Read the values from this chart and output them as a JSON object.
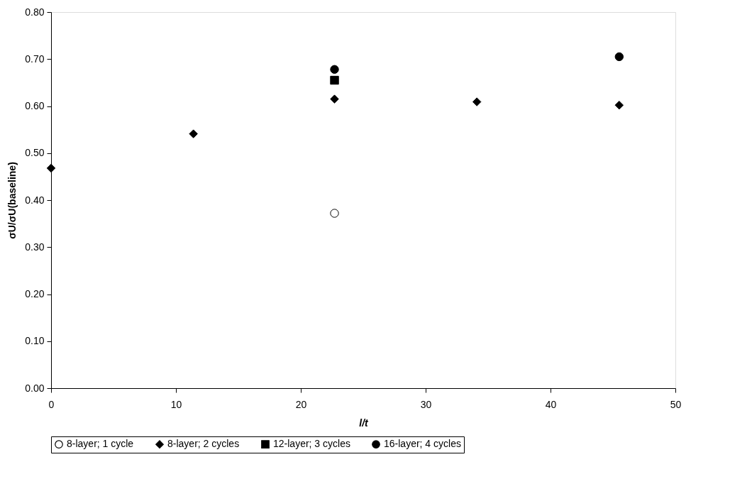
{
  "chart_data": {
    "type": "scatter",
    "xlabel": "l/t",
    "ylabel": "σU/σU(baseline)",
    "xlim": [
      0,
      50
    ],
    "xticks": [
      0,
      10,
      20,
      30,
      40,
      50
    ],
    "ylim": [
      0,
      0.8
    ],
    "yticks": [
      {
        "value": 0,
        "label": "0.00"
      },
      {
        "value": 0.1,
        "label": "0.10"
      },
      {
        "value": 0.2,
        "label": "0.20"
      },
      {
        "value": 0.3,
        "label": "0.30"
      },
      {
        "value": 0.4,
        "label": "0.40"
      },
      {
        "value": 0.5,
        "label": "0.50"
      },
      {
        "value": 0.6,
        "label": "0.60"
      },
      {
        "value": 0.7,
        "label": "0.70"
      },
      {
        "value": 0.8,
        "label": "0.80"
      }
    ],
    "grid": false,
    "legend": "bottom",
    "series": [
      {
        "name": "8-layer; 1 cycle",
        "color": "#ffffff",
        "marker": "circle",
        "x": [
          22.7
        ],
        "values": [
          0.372
        ]
      },
      {
        "name": "8-layer; 2 cycles",
        "color": "#000000",
        "marker": "diamond",
        "x": [
          0,
          11.4,
          22.7,
          34.1,
          45.5
        ],
        "values": [
          0.468,
          0.541,
          0.615,
          0.609,
          0.602
        ]
      },
      {
        "name": "12-layer; 3 cycles",
        "color": "#000000",
        "marker": "square",
        "x": [
          22.7
        ],
        "values": [
          0.655
        ]
      },
      {
        "name": "16-layer; 4 cycles",
        "color": "#000000",
        "marker": "circle",
        "x": [
          22.7,
          45.5
        ],
        "values": [
          0.678,
          0.705
        ]
      }
    ]
  }
}
